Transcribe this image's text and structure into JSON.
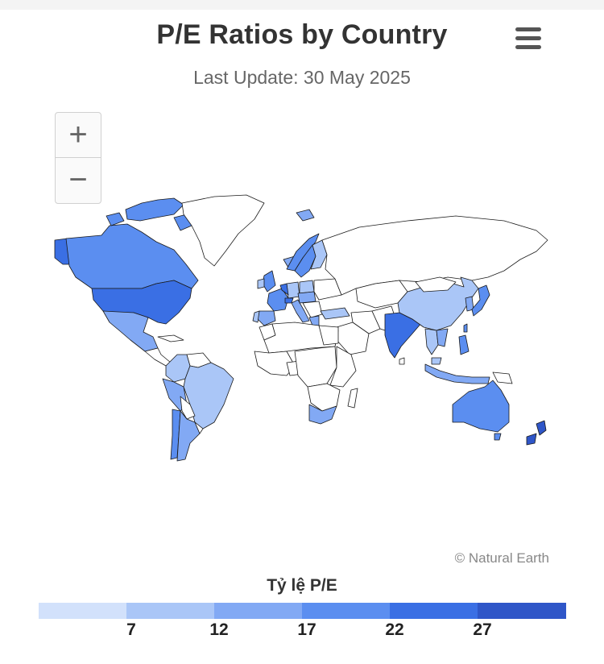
{
  "header": {
    "title": "P/E Ratios by Country",
    "subtitle": "Last Update: 30 May 2025"
  },
  "controls": {
    "zoom_in": "+",
    "zoom_out": "−",
    "menu_icon": "hamburger-menu-icon"
  },
  "credit": "© Natural Earth",
  "legend": {
    "title": "Tỷ lệ P/E",
    "classes": [
      {
        "to": 7,
        "color": "#d2e1fb"
      },
      {
        "from": 7,
        "to": 12,
        "color": "#aac6f7"
      },
      {
        "from": 12,
        "to": 17,
        "color": "#82a9f4"
      },
      {
        "from": 17,
        "to": 22,
        "color": "#5b8ef0"
      },
      {
        "from": 22,
        "to": 27,
        "color": "#3a6fe4"
      },
      {
        "from": 27,
        "color": "#2f56c8"
      }
    ],
    "ticks": [
      "7",
      "12",
      "17",
      "22",
      "27"
    ]
  },
  "colors": {
    "no_data": "#ffffff",
    "border": "#1a1a1a"
  }
}
